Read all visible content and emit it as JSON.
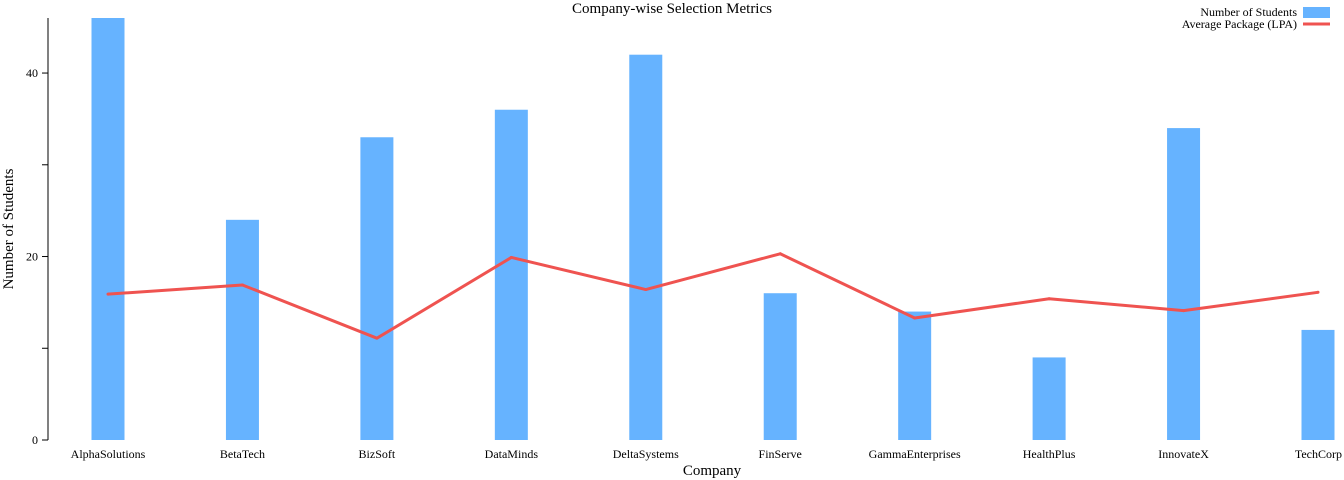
{
  "chart_data": {
    "type": "bar",
    "title": "Company-wise Selection Metrics",
    "xlabel": "Company",
    "ylabel": "Number of Students",
    "ylim": [
      0,
      46
    ],
    "yticks": [
      0,
      20,
      40
    ],
    "grid": false,
    "legend_position": "top-right",
    "categories": [
      "AlphaSolutions",
      "BetaTech",
      "BizSoft",
      "DataMinds",
      "DeltaSystems",
      "FinServe",
      "GammaEnterprises",
      "HealthPlus",
      "InnovateX",
      "TechCorp"
    ],
    "series": [
      {
        "name": "Number of Students",
        "type": "bar",
        "color": "#66b3ff",
        "values": [
          46,
          24,
          33,
          36,
          42,
          16,
          14,
          9,
          34,
          12
        ]
      },
      {
        "name": "Average Package (LPA)",
        "type": "line",
        "color": "#ef5350",
        "values": [
          15.9,
          16.9,
          11.1,
          19.9,
          16.4,
          20.3,
          13.3,
          15.4,
          14.1,
          16.1
        ]
      }
    ]
  }
}
